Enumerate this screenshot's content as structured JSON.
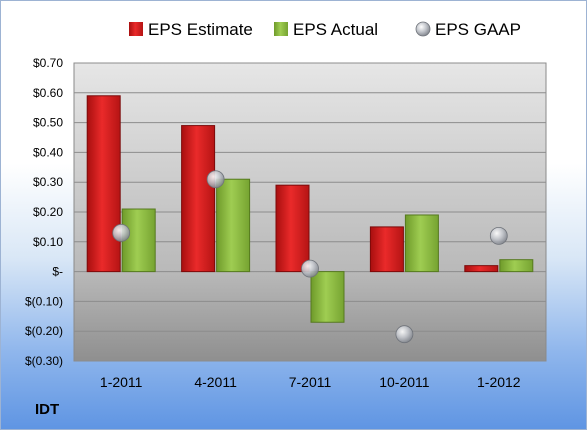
{
  "company": "IDT",
  "chart_data": {
    "type": "bar",
    "title": "",
    "xlabel": "",
    "ylabel": "",
    "categories": [
      "1-2011",
      "4-2011",
      "7-2011",
      "10-2011",
      "1-2012"
    ],
    "series": [
      {
        "name": "EPS Estimate",
        "type": "bar",
        "color": "#e01b1b",
        "values": [
          0.59,
          0.49,
          0.29,
          0.15,
          0.02
        ]
      },
      {
        "name": "EPS Actual",
        "type": "bar",
        "color": "#8cbf3e",
        "values": [
          0.21,
          0.31,
          -0.17,
          0.19,
          0.04
        ]
      },
      {
        "name": "EPS GAAP",
        "type": "scatter",
        "color": "#b8bcc4",
        "values": [
          0.13,
          0.31,
          0.01,
          -0.21,
          0.12
        ]
      }
    ],
    "ylim": [
      -0.3,
      0.7
    ],
    "yticks": [
      {
        "value": 0.7,
        "label": "$0.70"
      },
      {
        "value": 0.6,
        "label": "$0.60"
      },
      {
        "value": 0.5,
        "label": "$0.50"
      },
      {
        "value": 0.4,
        "label": "$0.40"
      },
      {
        "value": 0.3,
        "label": "$0.30"
      },
      {
        "value": 0.2,
        "label": "$0.20"
      },
      {
        "value": 0.1,
        "label": "$0.10"
      },
      {
        "value": 0.0,
        "label": "$-"
      },
      {
        "value": -0.1,
        "label": "$(0.10)"
      },
      {
        "value": -0.2,
        "label": "$(0.20)"
      },
      {
        "value": -0.3,
        "label": "$(0.30)"
      }
    ],
    "grid": true,
    "legend_position": "top"
  }
}
